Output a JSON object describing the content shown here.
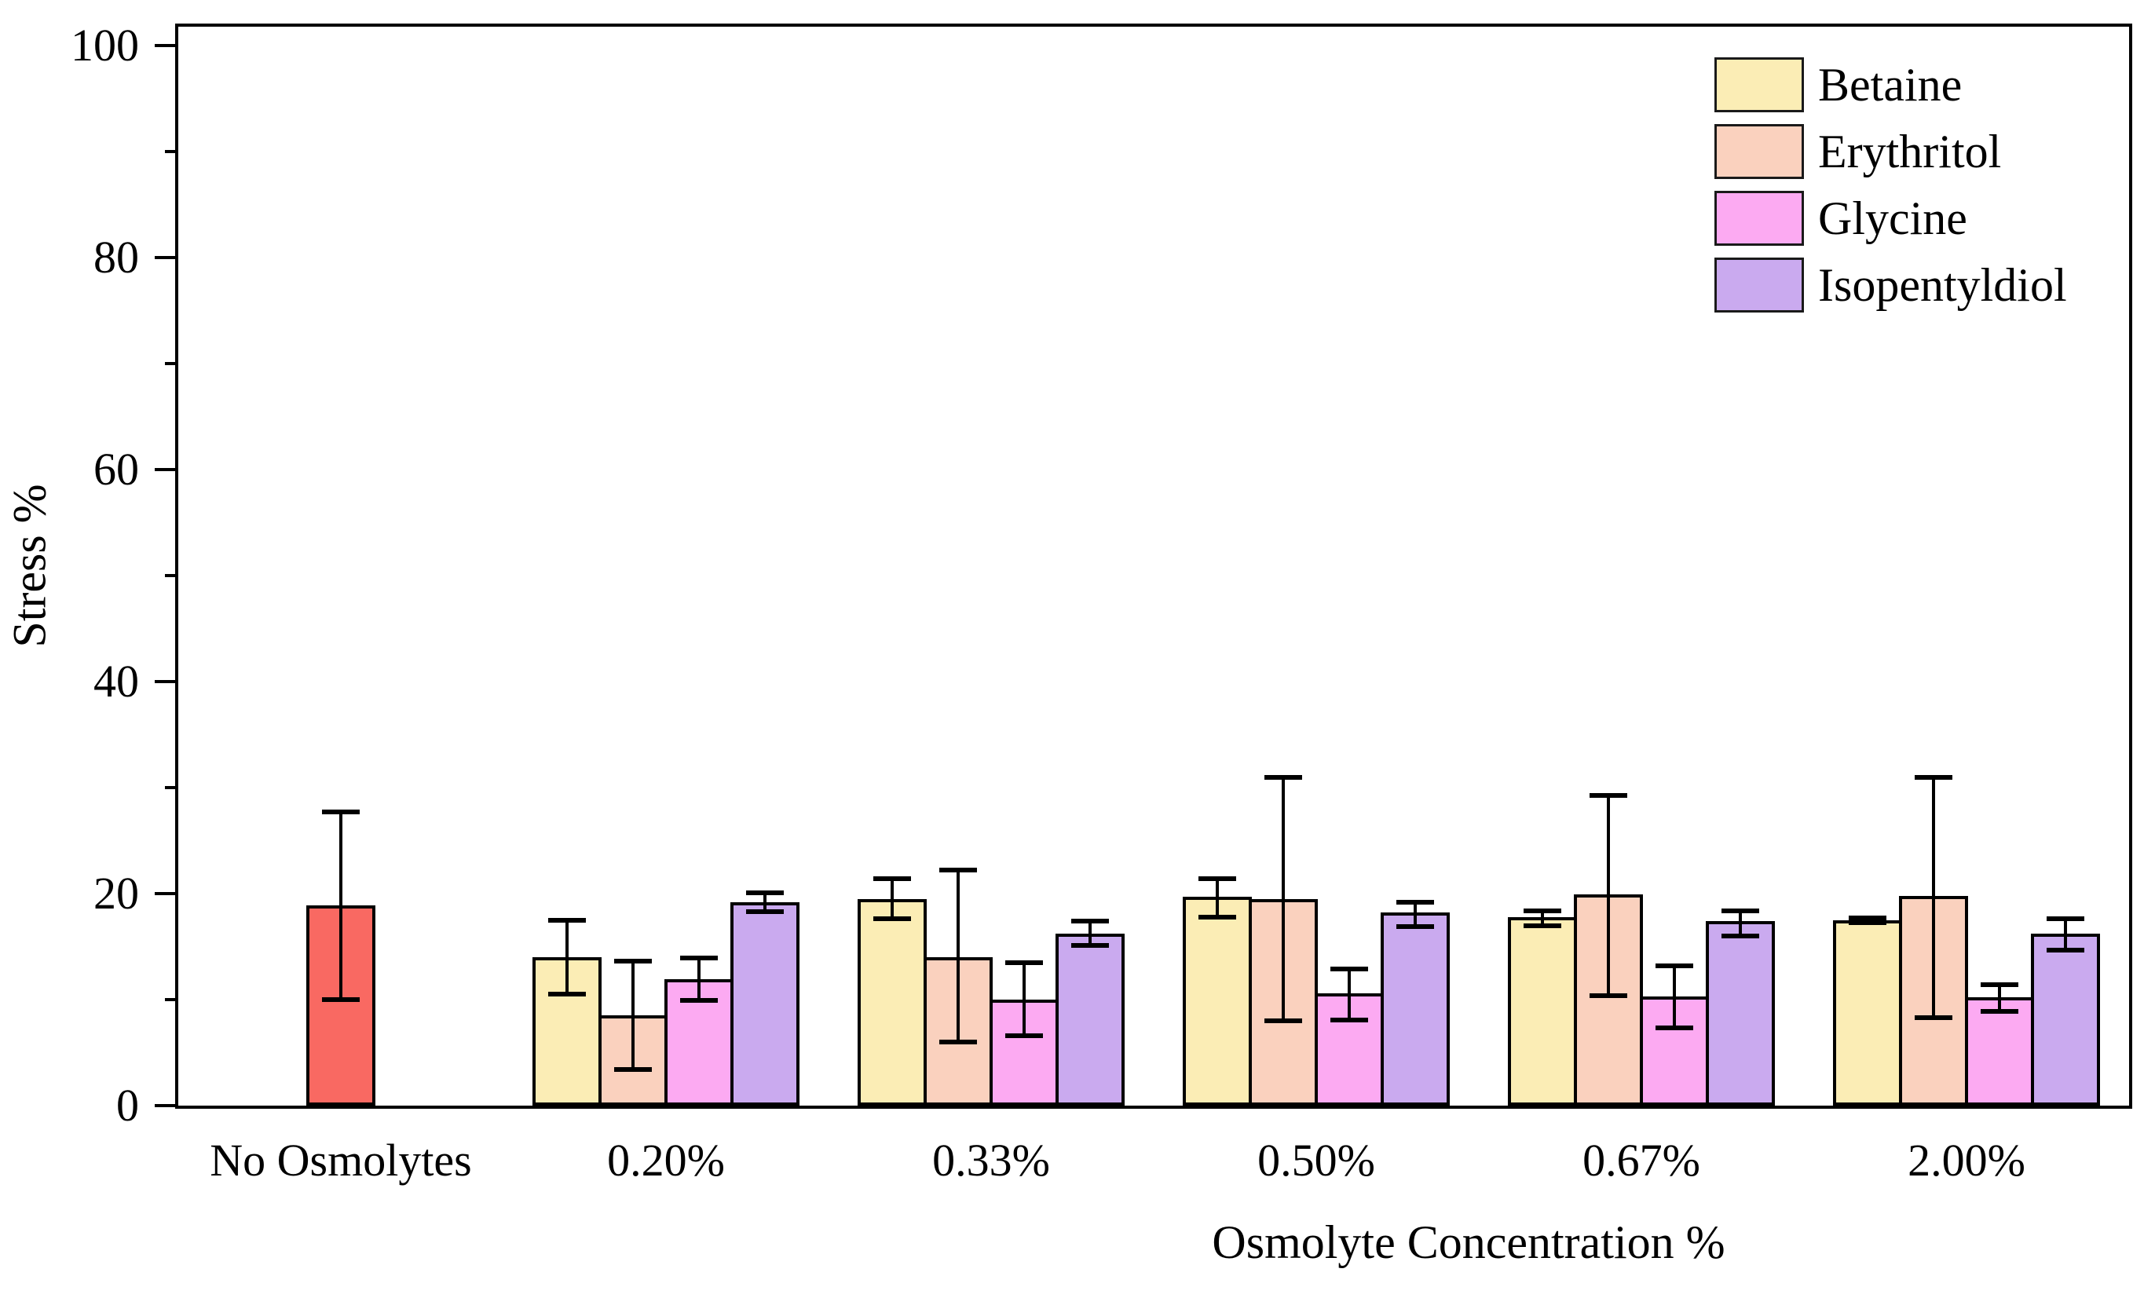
{
  "figure": {
    "background": "#ffffff",
    "frame_color": "#000000"
  },
  "chart_data": {
    "type": "bar",
    "title": "",
    "xlabel": "Osmolyte Concentration %",
    "ylabel": "Stress %",
    "ylim": [
      0,
      100
    ],
    "yticks_major": [
      0,
      20,
      40,
      60,
      80,
      100
    ],
    "yticks_minor": [
      10,
      30,
      50,
      70,
      90
    ],
    "grid": false,
    "legend_position": "top-right-inside",
    "error_bars": true,
    "categories": [
      "No Osmolytes",
      "0.20%",
      "0.33%",
      "0.50%",
      "0.67%",
      "2.00%"
    ],
    "series": [
      {
        "name": "No Osmolytes",
        "color": "#F96962",
        "in_legend": false,
        "values": [
          18.9,
          null,
          null,
          null,
          null,
          null
        ],
        "err_up": [
          8.8,
          null,
          null,
          null,
          null,
          null
        ],
        "err_down": [
          8.9,
          null,
          null,
          null,
          null,
          null
        ]
      },
      {
        "name": "Betaine",
        "color": "#FBEDB5",
        "in_legend": true,
        "values": [
          null,
          14.0,
          19.5,
          19.7,
          17.8,
          17.5
        ],
        "err_up": [
          null,
          3.5,
          1.9,
          1.7,
          0.6,
          0.2
        ],
        "err_down": [
          null,
          3.5,
          1.9,
          1.9,
          0.8,
          0.2
        ]
      },
      {
        "name": "Erythritol",
        "color": "#FAD1BE",
        "in_legend": true,
        "values": [
          null,
          8.5,
          14.0,
          19.5,
          19.9,
          19.8
        ],
        "err_up": [
          null,
          5.1,
          8.2,
          11.5,
          9.4,
          11.2
        ],
        "err_down": [
          null,
          5.1,
          8.0,
          11.5,
          9.5,
          11.5
        ]
      },
      {
        "name": "Glycine",
        "color": "#FCAAF2",
        "in_legend": true,
        "values": [
          null,
          11.9,
          10.0,
          10.6,
          10.3,
          10.2
        ],
        "err_up": [
          null,
          2.0,
          3.5,
          2.3,
          2.9,
          1.2
        ],
        "err_down": [
          null,
          2.0,
          3.4,
          2.5,
          3.0,
          1.3
        ]
      },
      {
        "name": "Isopentyldiol",
        "color": "#CAAAEF",
        "in_legend": true,
        "values": [
          null,
          19.2,
          16.2,
          18.2,
          17.4,
          16.2
        ],
        "err_up": [
          null,
          0.9,
          1.2,
          1.0,
          1.0,
          1.4
        ],
        "err_down": [
          null,
          0.9,
          1.1,
          1.3,
          1.4,
          1.5
        ]
      }
    ]
  }
}
